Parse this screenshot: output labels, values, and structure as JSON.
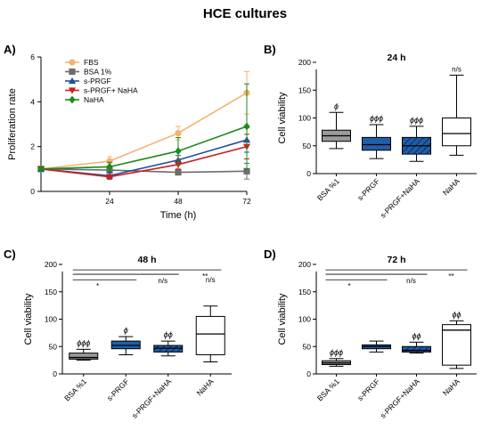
{
  "figure_title": "HCE cultures",
  "panels": {
    "A": {
      "letter": "A)"
    },
    "B": {
      "letter": "B)"
    },
    "C": {
      "letter": "C)"
    },
    "D": {
      "letter": "D)"
    }
  },
  "colors": {
    "FBS": "#f5b26e",
    "BSA 1%": "#6d6d6d",
    "s-PRGF": "#1f4f9a",
    "s-PRGF+ NaHA": "#cc1f1f",
    "NaHA": "#1a8a1a",
    "box_bsa": "#9a9a9a",
    "box_sprgf": "#1f5fa8",
    "box_nahatint": "#1f5fa8"
  },
  "chart_data": [
    {
      "panel": "A",
      "type": "line",
      "title": "",
      "xlabel": "Time (h)",
      "ylabel": "Proliferation rate",
      "x": [
        0,
        24,
        48,
        72
      ],
      "xticks": [
        "24",
        "48",
        "72"
      ],
      "xtick_values": [
        24,
        48,
        72
      ],
      "xlim": [
        0,
        72
      ],
      "ylim": [
        0,
        6
      ],
      "yticks": [
        0,
        2,
        4,
        6
      ],
      "legend_position": "top-left",
      "series": [
        {
          "name": "FBS",
          "marker": "circle",
          "values": [
            1.0,
            1.35,
            2.6,
            4.4
          ],
          "errors": [
            0.05,
            0.2,
            0.3,
            0.95
          ]
        },
        {
          "name": "BSA 1%",
          "marker": "square",
          "values": [
            1.0,
            0.95,
            0.85,
            0.9
          ],
          "errors": [
            0.05,
            0.1,
            0.1,
            0.35
          ]
        },
        {
          "name": "s-PRGF",
          "marker": "triangle-up",
          "values": [
            1.0,
            0.7,
            1.4,
            2.3
          ],
          "errors": [
            0.05,
            0.15,
            0.2,
            0.55
          ]
        },
        {
          "name": "s-PRGF+ NaHA",
          "marker": "triangle-down",
          "values": [
            1.0,
            0.65,
            1.2,
            2.0
          ],
          "errors": [
            0.05,
            0.1,
            0.2,
            0.55
          ]
        },
        {
          "name": "NaHA",
          "marker": "diamond",
          "values": [
            1.0,
            1.1,
            1.8,
            2.9
          ],
          "errors": [
            0.05,
            0.2,
            0.6,
            1.9
          ]
        }
      ]
    },
    {
      "panel": "B",
      "type": "box",
      "title": "24 h",
      "ylabel": "Cell viability",
      "ylim": [
        0,
        200
      ],
      "yticks": [
        0,
        50,
        100,
        150,
        200
      ],
      "categories": [
        "BSA %1",
        "s-PRGF",
        "s-PRGF+NaHA",
        "NaHA"
      ],
      "boxes": [
        {
          "min": 45,
          "q1": 58,
          "median": 68,
          "q3": 78,
          "max": 110
        },
        {
          "min": 27,
          "q1": 42,
          "median": 52,
          "q3": 65,
          "max": 88
        },
        {
          "min": 22,
          "q1": 35,
          "median": 50,
          "q3": 65,
          "max": 85
        },
        {
          "min": 33,
          "q1": 50,
          "median": 72,
          "q3": 100,
          "max": 177
        }
      ],
      "markers": [
        "ϕ",
        "ϕϕϕ",
        "ϕϕϕ",
        "n/s"
      ],
      "brackets": []
    },
    {
      "panel": "C",
      "type": "box",
      "title": "48 h",
      "ylabel": "Cell viability",
      "ylim": [
        0,
        200
      ],
      "yticks": [
        0,
        50,
        100,
        150,
        200
      ],
      "categories": [
        "BSA %1",
        "s-PRGF",
        "s-PRGF+NaHA",
        "NaHA"
      ],
      "boxes": [
        {
          "min": 25,
          "q1": 27,
          "median": 30,
          "q3": 38,
          "max": 45
        },
        {
          "min": 35,
          "q1": 46,
          "median": 52,
          "q3": 60,
          "max": 68
        },
        {
          "min": 33,
          "q1": 40,
          "median": 47,
          "q3": 52,
          "max": 60
        },
        {
          "min": 22,
          "q1": 35,
          "median": 73,
          "q3": 105,
          "max": 124
        }
      ],
      "markers": [
        "ϕϕϕ",
        "ϕ",
        "ϕϕ",
        ""
      ],
      "brackets": [
        {
          "from": 0,
          "to": 1,
          "label": "*",
          "y": 172
        },
        {
          "from": 0,
          "to": 2,
          "label": "n/s",
          "y": 182
        },
        {
          "from": 0,
          "to": 3,
          "label": "**",
          "y": 190
        },
        {
          "from": 3,
          "to": 3,
          "label": "n/s",
          "y": 172
        }
      ]
    },
    {
      "panel": "D",
      "type": "box",
      "title": "72 h",
      "ylabel": "Cell viability",
      "ylim": [
        0,
        200
      ],
      "yticks": [
        0,
        50,
        100,
        150,
        200
      ],
      "categories": [
        "BSA %1",
        "s-PRGF",
        "s-PRGF+NaHA",
        "NaHA"
      ],
      "boxes": [
        {
          "min": 14,
          "q1": 17,
          "median": 20,
          "q3": 24,
          "max": 28
        },
        {
          "min": 40,
          "q1": 46,
          "median": 50,
          "q3": 53,
          "max": 60
        },
        {
          "min": 38,
          "q1": 40,
          "median": 43,
          "q3": 50,
          "max": 58
        },
        {
          "min": 10,
          "q1": 16,
          "median": 80,
          "q3": 90,
          "max": 97
        }
      ],
      "markers": [
        "ϕϕϕ",
        "",
        "ϕϕ",
        "ϕϕ"
      ],
      "brackets": [
        {
          "from": 0,
          "to": 1,
          "label": "*",
          "y": 172
        },
        {
          "from": 0,
          "to": 2,
          "label": "n/s",
          "y": 182
        },
        {
          "from": 0,
          "to": 3,
          "label": "**",
          "y": 190
        }
      ]
    }
  ]
}
